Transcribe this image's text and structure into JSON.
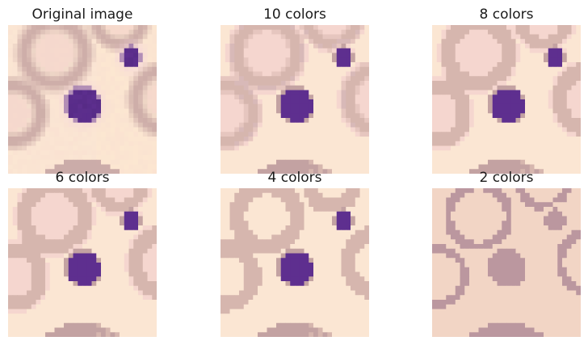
{
  "panels": [
    {
      "title": "Original image",
      "levels": 0
    },
    {
      "title": "10 colors",
      "levels": 10
    },
    {
      "title": "8 colors",
      "levels": 8
    },
    {
      "title": "6 colors",
      "levels": 6
    },
    {
      "title": "4 colors",
      "levels": 4
    },
    {
      "title": "2 colors",
      "levels": 2
    }
  ],
  "colors": {
    "background_light": "#fbe6d3",
    "background_cream": "#fde8cf",
    "background_pink": "#f5d6cf",
    "ring_tan": "#d6b6ae",
    "ring_mauve": "#c3a2a2",
    "halo_pink": "#f3d0de",
    "nucleus_purple": "#5e2f8f",
    "nucleus_dark": "#4a2478",
    "two_color_bg": "#f2d5c5",
    "two_color_fg": "#bb979f"
  }
}
